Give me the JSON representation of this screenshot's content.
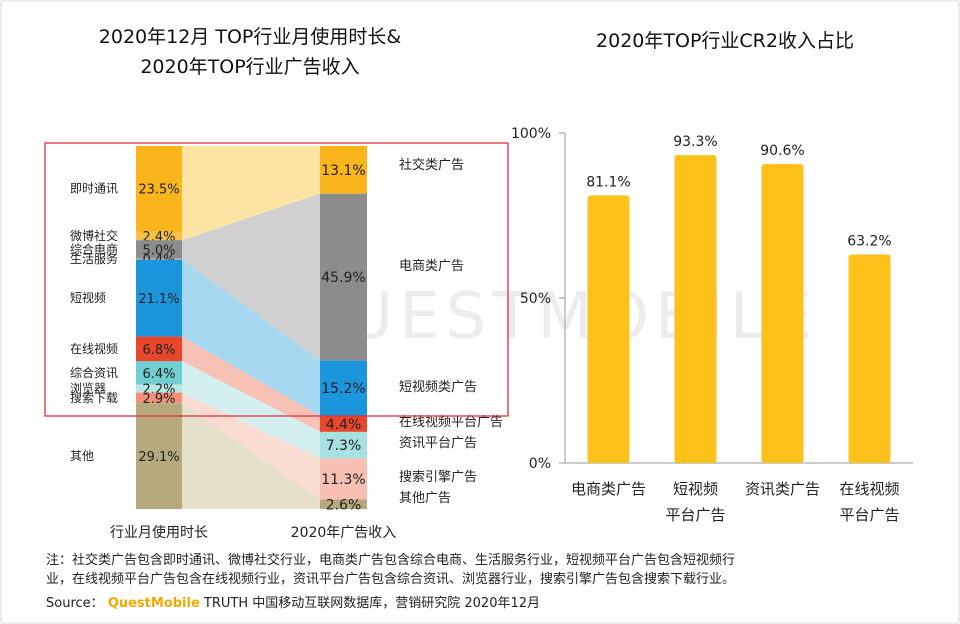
{
  "left_title": {
    "line1": "2020年12月 TOP行业月使用时长&",
    "line2": "2020年TOP行业广告收入"
  },
  "right_title": "2020年TOP行业CR2收入占比",
  "watermark": "QUESTMOBILE",
  "chart_data": [
    {
      "type": "stacked-bar-flow",
      "title": "2020年12月 TOP行业月使用时长& 2020年TOP行业广告收入",
      "categories": [
        "行业月使用时长",
        "2020年广告收入"
      ],
      "usage": {
        "segments": [
          {
            "label": "即时通讯",
            "value": 23.5,
            "display": "23.5%",
            "color": "#fbb51c"
          },
          {
            "label": "微博社交",
            "value": 2.4,
            "display": "2.4%",
            "color": "#f8c24a"
          },
          {
            "label": "综合电商",
            "value": 5.0,
            "display": "5.0%",
            "color": "#8c8c8c"
          },
          {
            "label": "生活服务",
            "value": 0.4,
            "display": "0.4%",
            "color": "#aaaaaa"
          },
          {
            "label": "短视频",
            "value": 21.1,
            "display": "21.1%",
            "color": "#1b95db"
          },
          {
            "label": "在线视频",
            "value": 6.8,
            "display": "6.8%",
            "color": "#e8472b"
          },
          {
            "label": "综合资讯",
            "value": 6.4,
            "display": "6.4%",
            "color": "#6fcfd1"
          },
          {
            "label": "浏览器",
            "value": 2.2,
            "display": "2.2%",
            "color": "#b9e6e6"
          },
          {
            "label": "搜索下载",
            "value": 2.9,
            "display": "2.9%",
            "color": "#f5907a"
          },
          {
            "label": "其他",
            "value": 29.1,
            "display": "29.1%",
            "color": "#b5a97d"
          }
        ]
      },
      "revenue": {
        "segments": [
          {
            "label": "社交类广告",
            "value": 13.1,
            "display": "13.1%",
            "color": "#fbb51c"
          },
          {
            "label": "电商类广告",
            "value": 45.9,
            "display": "45.9%",
            "color": "#8c8c8c"
          },
          {
            "label": "短视频类广告",
            "value": 15.2,
            "display": "15.2%",
            "color": "#1b95db"
          },
          {
            "label": "在线视频平台广告",
            "value": 4.4,
            "display": "4.4%",
            "color": "#e8472b"
          },
          {
            "label": "资讯平台广告",
            "value": 7.3,
            "display": "7.3%",
            "color": "#a8e1e1"
          },
          {
            "label": "搜索引擎广告",
            "value": 11.3,
            "display": "11.3%",
            "color": "#f8c0b3"
          },
          {
            "label": "其他广告",
            "value": 2.6,
            "display": "2.6%",
            "color": "#b5a97d"
          }
        ]
      },
      "flows": [
        {
          "from": [
            0,
            1
          ],
          "to": 0,
          "color": "#fde4a3"
        },
        {
          "from": [
            2,
            3
          ],
          "to": 1,
          "color": "#d0d0d0"
        },
        {
          "from": [
            4,
            4
          ],
          "to": 2,
          "color": "#a6d8f2"
        },
        {
          "from": [
            5,
            5
          ],
          "to": 3,
          "color": "#f7c1b6"
        },
        {
          "from": [
            6,
            7
          ],
          "to": 4,
          "color": "#d4efef"
        },
        {
          "from": [
            8,
            8
          ],
          "to": 5,
          "color": "#fbdcd3"
        },
        {
          "from": [
            9,
            9
          ],
          "to": 6,
          "color": "#e6e0cb"
        }
      ]
    },
    {
      "type": "bar",
      "title": "2020年TOP行业CR2收入占比",
      "categories": [
        [
          "电商类广告"
        ],
        [
          "短视频",
          "平台广告"
        ],
        [
          "资讯类广告"
        ],
        [
          "在线视频",
          "平台广告"
        ]
      ],
      "values": [
        81.1,
        93.3,
        90.6,
        63.2
      ],
      "value_labels": [
        "81.1%",
        "93.3%",
        "90.6%",
        "63.2%"
      ],
      "yticks": [
        "0%",
        "50%",
        "100%"
      ],
      "ylim": [
        0,
        100
      ],
      "bar_color": "#fcc219"
    }
  ],
  "notes": {
    "line1": "注：社交类广告包含即时通讯、微博社交行业，电商类广告包含综合电商、生活服务行业，短视频平台广告包含短视频行",
    "line2": "业，在线视频平台广告包含在线视频行业，资讯平台广告包含综合资讯、浏览器行业，搜索引擎广告包含搜索下载行业。"
  },
  "source": {
    "prefix": "Source：",
    "brand": "QuestMobile",
    "rest": "TRUTH 中国移动互联网数据库，营销研究院 2020年12月"
  }
}
